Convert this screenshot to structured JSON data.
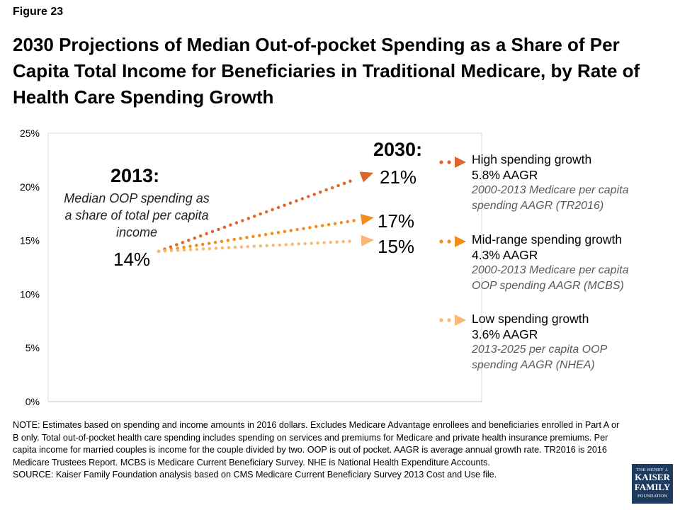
{
  "figure_label": "Figure 23",
  "title": "2030 Projections of Median Out-of-pocket Spending as a Share of Per Capita Total Income for Beneficiaries in Traditional Medicare, by Rate of Health Care Spending Growth",
  "annotations": {
    "year_start": "2013:",
    "start_note": "Median OOP spending as a share of total per capita income",
    "start_value": "14%",
    "year_end": "2030:",
    "end_high": "21%",
    "end_mid": "17%",
    "end_low": "15%"
  },
  "legend": [
    {
      "name": "High spending growth",
      "rate": "5.8% AAGR",
      "note": "2000-2013 Medicare per capita spending AAGR (TR2016)",
      "color": "#E0652B"
    },
    {
      "name": "Mid-range spending growth",
      "rate": "4.3% AAGR",
      "note": "2000-2013 Medicare per capita OOP spending AAGR (MCBS)",
      "color": "#F28C1A"
    },
    {
      "name": "Low spending growth",
      "rate": "3.6% AAGR",
      "note": "2013-2025 per capita OOP spending AAGR (NHEA)",
      "color": "#F9B775"
    }
  ],
  "chart_data": {
    "type": "line",
    "x": [
      "2013",
      "2030"
    ],
    "series": [
      {
        "name": "High spending growth",
        "values": [
          14,
          21
        ],
        "color": "#E0652B"
      },
      {
        "name": "Mid-range spending growth",
        "values": [
          14,
          17
        ],
        "color": "#F28C1A"
      },
      {
        "name": "Low spending growth",
        "values": [
          14,
          15
        ],
        "color": "#F9B775"
      }
    ],
    "ylim": [
      0,
      25
    ],
    "yticks": [
      "0%",
      "5%",
      "10%",
      "15%",
      "20%",
      "25%"
    ],
    "ytick_values": [
      0,
      5,
      10,
      15,
      20,
      25
    ],
    "grid": false,
    "line_style": "dotted with arrowhead"
  },
  "notes": {
    "note": "NOTE: Estimates based on spending and income amounts in 2016 dollars. Excludes Medicare Advantage enrollees and beneficiaries enrolled in Part A or B only. Total out-of-pocket health care spending includes spending on services and premiums for Medicare and private health insurance premiums. Per capita income for married couples is income for the couple divided by two. OOP is out of pocket. AAGR is average annual growth rate. TR2016 is 2016 Medicare Trustees Report. MCBS is Medicare Current Beneficiary Survey. NHE is National Health Expenditure Accounts.",
    "source": "SOURCE: Kaiser Family Foundation analysis based on CMS Medicare Current Beneficiary Survey 2013 Cost and Use file."
  },
  "logo": {
    "line1": "THE HENRY J.",
    "line2": "KAISER",
    "line3": "FAMILY",
    "line4": "FOUNDATION"
  }
}
